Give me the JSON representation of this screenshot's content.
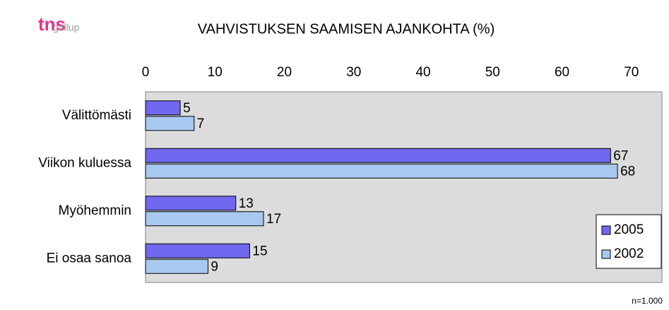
{
  "logo": {
    "brand": "tns",
    "sub": "gallup"
  },
  "chart_data": {
    "type": "hbar",
    "title": "VAHVISTUKSEN SAAMISEN AJANKOHTA (%)",
    "categories": [
      "Välittömästi",
      "Viikon kuluessa",
      "Myöhemmin",
      "Ei osaa sanoa"
    ],
    "series": [
      {
        "name": "2005",
        "color": "#7068ee",
        "values": [
          5,
          67,
          13,
          15
        ]
      },
      {
        "name": "2002",
        "color": "#a8c8f0",
        "values": [
          7,
          68,
          17,
          9
        ]
      }
    ],
    "xlim": [
      0,
      74.4
    ],
    "xticks": [
      0,
      10,
      20,
      30,
      40,
      50,
      60,
      70
    ],
    "legend": "lower right",
    "note": "n=1.000"
  }
}
